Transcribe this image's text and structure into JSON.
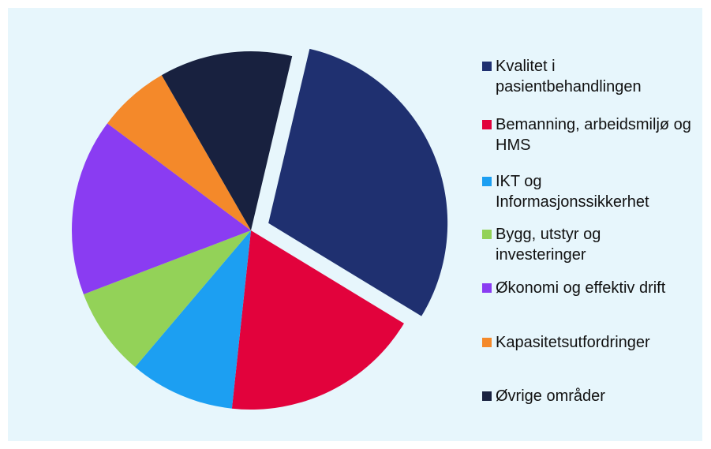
{
  "chart_data": {
    "type": "pie",
    "categories": [
      "Kvalitet i pasientbehandlingen",
      "Bemanning, arbeidsmiljø og HMS",
      "IKT og Informasjonssikkerhet",
      "Bygg, utstyr og investeringer",
      "Økonomi og effektiv drift",
      "Kapasitetsutfordringer",
      "Øvrige områder"
    ],
    "values": [
      30,
      18,
      9.5,
      8,
      16,
      6.5,
      12
    ],
    "colors": [
      "#1f3070",
      "#e2023c",
      "#1c9ff2",
      "#93d258",
      "#8a3cf2",
      "#f4892a",
      "#18213f"
    ],
    "explode": [
      true,
      false,
      false,
      false,
      false,
      false,
      false
    ],
    "legend": "right"
  }
}
